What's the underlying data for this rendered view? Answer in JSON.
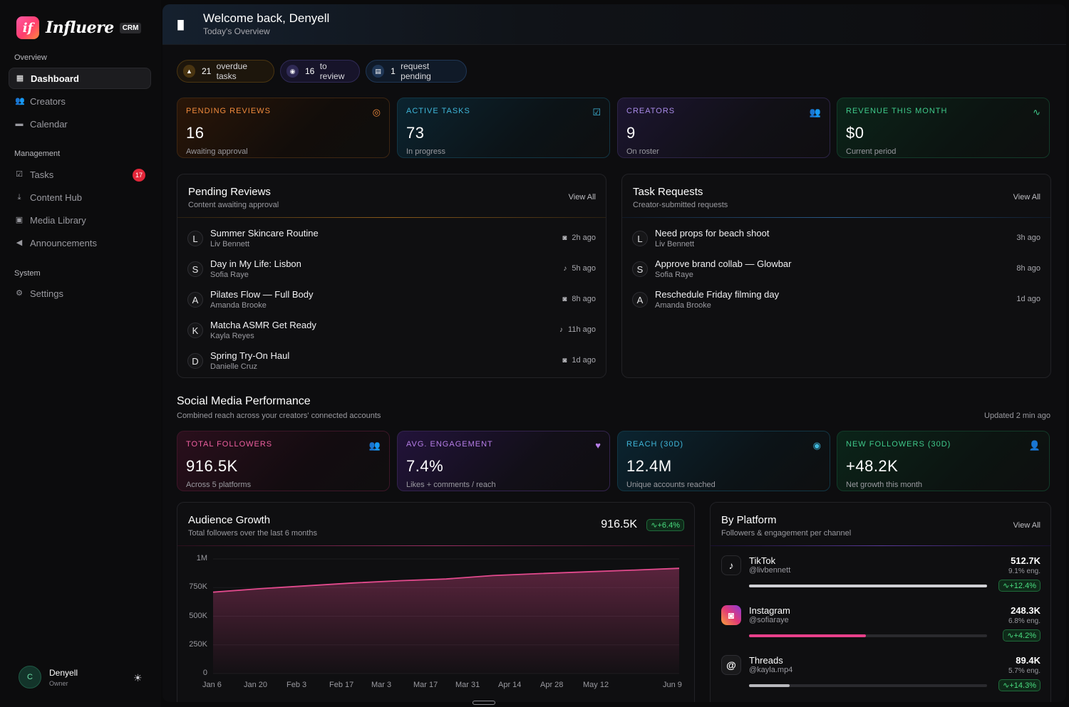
{
  "brand": {
    "name": "Influere",
    "badge": "CRM",
    "mark": "if"
  },
  "sidebar": {
    "sections": [
      "Overview",
      "Management",
      "System"
    ],
    "items": [
      {
        "label": "Dashboard",
        "icon": "grid-icon",
        "active": true
      },
      {
        "label": "Creators",
        "icon": "users-icon"
      },
      {
        "label": "Calendar",
        "icon": "calendar-icon"
      },
      {
        "label": "Tasks",
        "icon": "checkbox-icon",
        "badge": "17"
      },
      {
        "label": "Content Hub",
        "icon": "upload-icon"
      },
      {
        "label": "Media Library",
        "icon": "image-icon"
      },
      {
        "label": "Announcements",
        "icon": "megaphone-icon"
      },
      {
        "label": "Settings",
        "icon": "gear-icon"
      }
    ],
    "user": {
      "initial": "C",
      "name": "Denyell",
      "role": "Owner"
    }
  },
  "header": {
    "title": "Welcome back, Denyell",
    "subtitle": "Today's Overview"
  },
  "pills": [
    {
      "count": "21",
      "text": "overdue tasks",
      "icon": "warning-icon"
    },
    {
      "count": "16",
      "text": "to review",
      "icon": "eye-icon"
    },
    {
      "count": "1",
      "text": "request pending",
      "icon": "document-icon"
    }
  ],
  "stats": [
    {
      "label": "Pending Reviews",
      "value": "16",
      "sub": "Awaiting approval",
      "icon": "spinner-icon",
      "color": "#f08a3c"
    },
    {
      "label": "Active Tasks",
      "value": "73",
      "sub": "In progress",
      "icon": "check-square-icon",
      "color": "#3fb6d9"
    },
    {
      "label": "Creators",
      "value": "9",
      "sub": "On roster",
      "icon": "users-icon",
      "color": "#a98be8"
    },
    {
      "label": "Revenue This Month",
      "value": "$0",
      "sub": "Current period",
      "icon": "activity-icon",
      "color": "#3fc98a"
    }
  ],
  "pending_reviews": {
    "title": "Pending Reviews",
    "subtitle": "Content awaiting approval",
    "view_all": "View All",
    "rows": [
      {
        "initial": "L",
        "title": "Summer Skincare Routine",
        "author": "Liv Bennett",
        "platform": "instagram-icon",
        "time": "2h ago"
      },
      {
        "initial": "S",
        "title": "Day in My Life: Lisbon",
        "author": "Sofia Raye",
        "platform": "tiktok-icon",
        "time": "5h ago"
      },
      {
        "initial": "A",
        "title": "Pilates Flow — Full Body",
        "author": "Amanda Brooke",
        "platform": "instagram-icon",
        "time": "8h ago"
      },
      {
        "initial": "K",
        "title": "Matcha ASMR Get Ready",
        "author": "Kayla Reyes",
        "platform": "tiktok-icon",
        "time": "11h ago"
      },
      {
        "initial": "D",
        "title": "Spring Try-On Haul",
        "author": "Danielle Cruz",
        "platform": "instagram-icon",
        "time": "1d ago"
      }
    ]
  },
  "task_requests": {
    "title": "Task Requests",
    "subtitle": "Creator-submitted requests",
    "view_all": "View All",
    "rows": [
      {
        "initial": "L",
        "title": "Need props for beach shoot",
        "author": "Liv Bennett",
        "time": "3h ago"
      },
      {
        "initial": "S",
        "title": "Approve brand collab — Glowbar",
        "author": "Sofia Raye",
        "time": "8h ago"
      },
      {
        "initial": "A",
        "title": "Reschedule Friday filming day",
        "author": "Amanda Brooke",
        "time": "1d ago"
      }
    ]
  },
  "social": {
    "title": "Social Media Performance",
    "subtitle": "Combined reach across your creators' connected accounts",
    "updated": "Updated 2 min ago"
  },
  "social_stats": [
    {
      "label": "Total Followers",
      "value": "916.5K",
      "sub": "Across 5 platforms",
      "icon": "users-icon",
      "color": "#ee5fa0"
    },
    {
      "label": "Avg. Engagement",
      "value": "7.4%",
      "sub": "Likes + comments / reach",
      "icon": "heart-icon",
      "color": "#b77ee8"
    },
    {
      "label": "Reach (30D)",
      "value": "12.4M",
      "sub": "Unique accounts reached",
      "icon": "eye-icon",
      "color": "#3fb6d9"
    },
    {
      "label": "New Followers (30D)",
      "value": "+48.2K",
      "sub": "Net growth this month",
      "icon": "user-plus-icon",
      "color": "#3fc98a"
    }
  ],
  "growth": {
    "title": "Audience Growth",
    "subtitle": "Total followers over the last 6 months",
    "value": "916.5K",
    "delta": "+6.4%"
  },
  "chart_data": {
    "type": "area",
    "x": [
      "Jan 6",
      "Jan 20",
      "Feb 3",
      "Feb 17",
      "Mar 3",
      "Mar 17",
      "Mar 31",
      "Apr 14",
      "Apr 28",
      "May 12",
      "Jun 9"
    ],
    "y_ticks": [
      "1M",
      "750K",
      "500K",
      "250K",
      "0"
    ],
    "ylim": [
      0,
      1000000
    ],
    "values": [
      710000,
      740000,
      765000,
      790000,
      810000,
      825000,
      855000,
      872000,
      887000,
      902000,
      918000
    ],
    "color": "#e24a8d"
  },
  "platforms": {
    "title": "By Platform",
    "subtitle": "Followers & engagement per channel",
    "view_all": "View All",
    "rows": [
      {
        "name": "TikTok",
        "handle": "@livbennett",
        "value": "512.7K",
        "eng": "9.1% eng.",
        "delta": "+12.4%",
        "share": 1.0,
        "color": "#d0d0d4",
        "icon": "tiktok-icon",
        "bg": "#111113"
      },
      {
        "name": "Instagram",
        "handle": "@sofiaraye",
        "value": "248.3K",
        "eng": "6.8% eng.",
        "delta": "+4.2%",
        "share": 0.49,
        "color": "#e8408a",
        "icon": "instagram-icon",
        "bg": "#c73a8a"
      },
      {
        "name": "Threads",
        "handle": "@kayla.mp4",
        "value": "89.4K",
        "eng": "5.7% eng.",
        "delta": "+14.3%",
        "share": 0.17,
        "color": "#b8b8bd",
        "icon": "threads-icon",
        "bg": "#1a1a1c"
      }
    ]
  }
}
